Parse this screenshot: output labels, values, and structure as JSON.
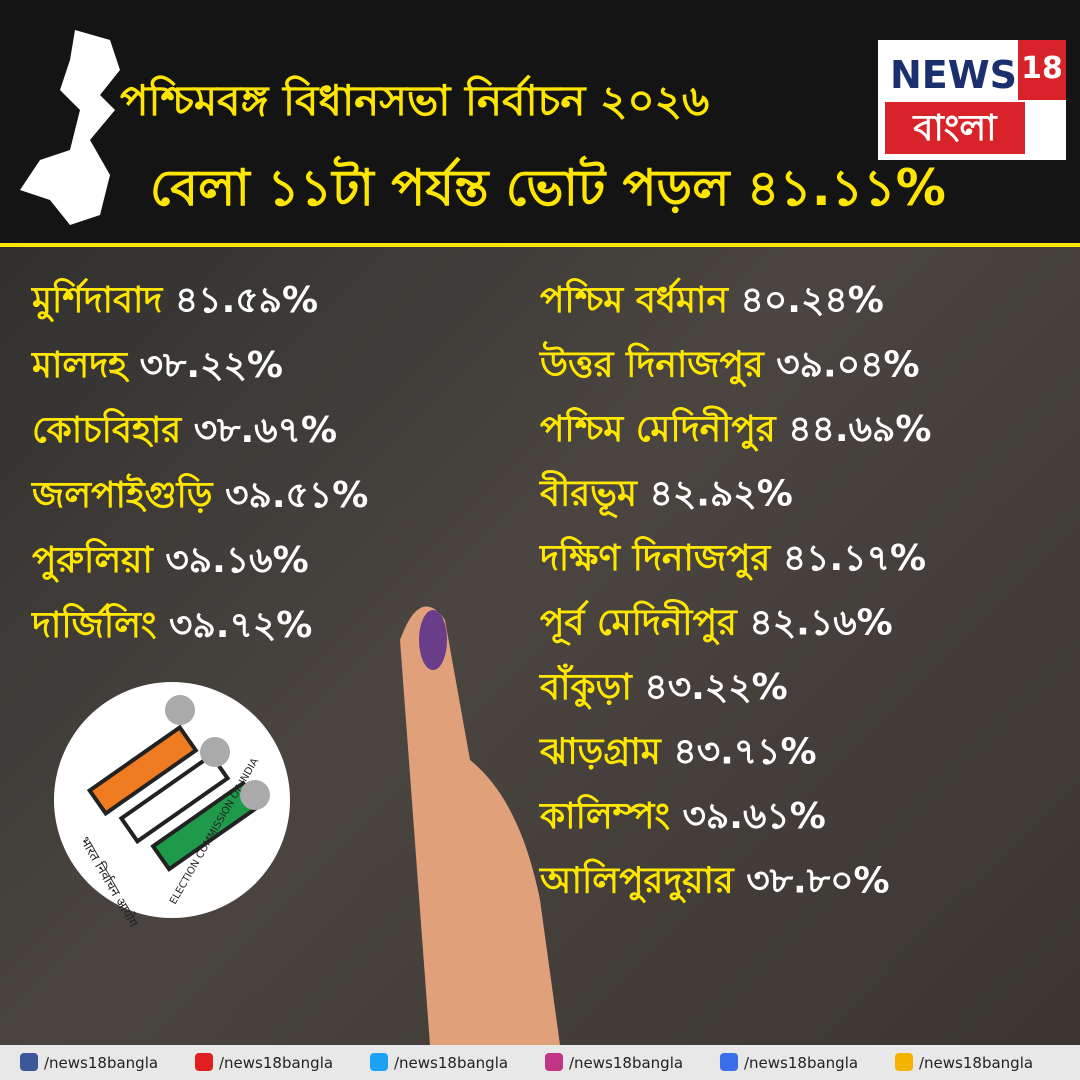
{
  "header": {
    "title_line1": "পশ্চিমবঙ্গ বিধানসভা নির্বাচন ২০২৬",
    "title_line2": "বেলা ১১টা পর্যন্ত ভোট পড়ল ৪১.১১%"
  },
  "logo": {
    "news": "NEWS",
    "number": "18",
    "language": "বাংলা"
  },
  "districts_left": [
    {
      "name": "মুর্শিদাবাদ",
      "value": "৪১.৫৯%"
    },
    {
      "name": "মালদহ",
      "value": "৩৮.২২%"
    },
    {
      "name": "কোচবিহার",
      "value": "৩৮.৬৭%"
    },
    {
      "name": "জলপাইগুড়ি",
      "value": "৩৯.৫১%"
    },
    {
      "name": "পুরুলিয়া",
      "value": "৩৯.১৬%"
    },
    {
      "name": "দার্জিলিং",
      "value": "৩৯.৭২%"
    }
  ],
  "districts_right": [
    {
      "name": "পশ্চিম বর্ধমান",
      "value": "৪০.২৪%"
    },
    {
      "name": "উত্তর দিনাজপুর",
      "value": "৩৯.০৪%"
    },
    {
      "name": "পশ্চিম মেদিনীপুর",
      "value": "৪৪.৬৯%"
    },
    {
      "name": "বীরভূম",
      "value": "৪২.৯২%"
    },
    {
      "name": "দক্ষিণ দিনাজপুর",
      "value": "৪১.১৭%"
    },
    {
      "name": "পূর্ব মেদিনীপুর",
      "value": "৪২.১৬%"
    },
    {
      "name": "বাঁকুড়া",
      "value": "৪৩.২২%"
    },
    {
      "name": "ঝাড়গ্রাম",
      "value": "৪৩.৭১%"
    },
    {
      "name": "কালিম্পং",
      "value": "৩৯.৬১%"
    },
    {
      "name": "আলিপুরদুয়ার",
      "value": "৩৮.৮০%"
    }
  ],
  "emblem": {
    "hindi": "भारत निर्वाचन आयोग",
    "english": "ELECTION COMMISSION OF INDIA"
  },
  "footer": [
    "/news18bangla",
    "/news18bangla",
    "/news18bangla",
    "/news18bangla",
    "/news18bangla",
    "/news18bangla"
  ]
}
